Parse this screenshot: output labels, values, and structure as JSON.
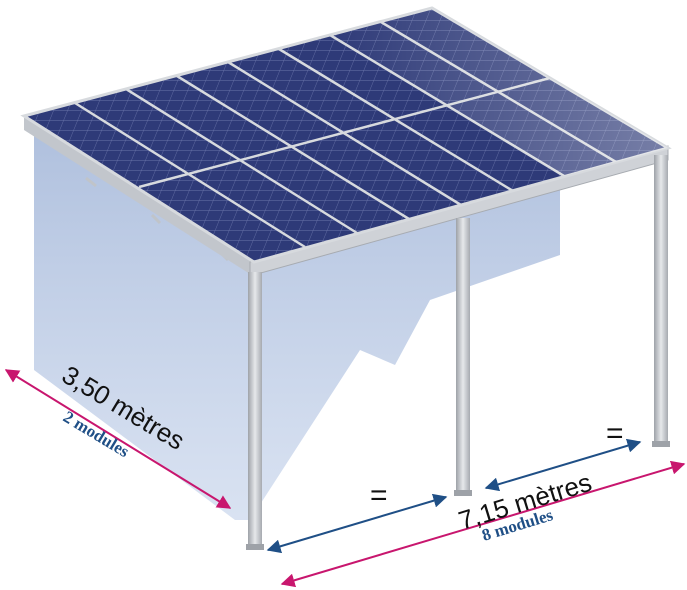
{
  "depth": {
    "dimension": "3,50 mètres",
    "modules": "2 modules"
  },
  "width": {
    "dimension": "7,15 mètres",
    "modules": "8 modules"
  },
  "spacing_marks": [
    "=",
    "="
  ],
  "colors": {
    "panel": "#2e3a78",
    "panel_light": "#6f79a8",
    "frame": "#d7dade",
    "post": "#c9ccd0",
    "shadow": "#b9c9e2",
    "dim_magenta": "#c8166e",
    "dim_blue": "#1f4f86"
  }
}
